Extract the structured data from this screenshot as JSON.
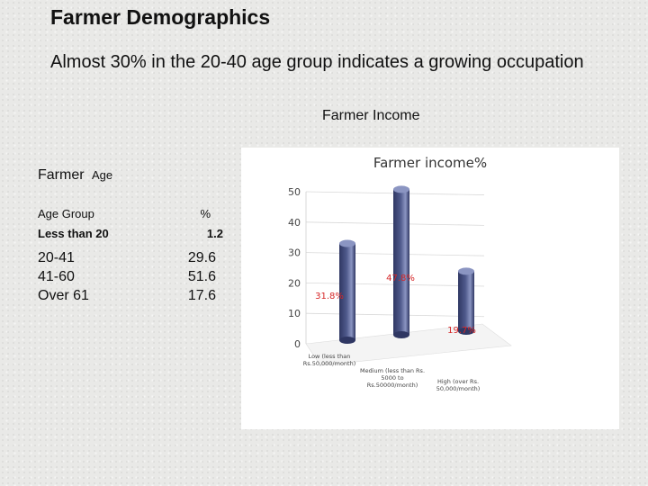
{
  "slide": {
    "title": "Farmer Demographics",
    "subtitle": "Almost 30% in the 20-40 age group indicates a growing occupation",
    "income_caption": "Farmer Income"
  },
  "age_table": {
    "heading_main": "Farmer",
    "heading_small": "Age",
    "col_group": "Age Group",
    "col_pct": "%",
    "rows": [
      {
        "group": "Less than 20",
        "pct": "1.2"
      },
      {
        "group": "20-41",
        "pct": "29.6"
      },
      {
        "group": "41-60",
        "pct": "51.6"
      },
      {
        "group": "Over 61",
        "pct": "17.6"
      }
    ]
  },
  "chart_data": {
    "type": "bar",
    "title": "Farmer income%",
    "categories": [
      "Low (less than Rs.50,000/month)",
      "Medium (less than Rs. 5000 to Rs.50000/month)",
      "High (over Rs. 50,000/month)"
    ],
    "values": [
      31.8,
      47.8,
      19.7
    ],
    "data_labels": [
      "31.8%",
      "47.8%",
      "19.7%"
    ],
    "yticks": [
      0,
      10,
      20,
      30,
      40,
      50
    ],
    "ylim": [
      0,
      50
    ],
    "grid": false,
    "legend": "none",
    "colors": {
      "bar": "#4f5a8c",
      "bar_light": "#8b95c2",
      "bar_dark": "#2f3763",
      "data_label": "#d62728",
      "axis_text": "#444444",
      "title_text": "#333333"
    }
  }
}
